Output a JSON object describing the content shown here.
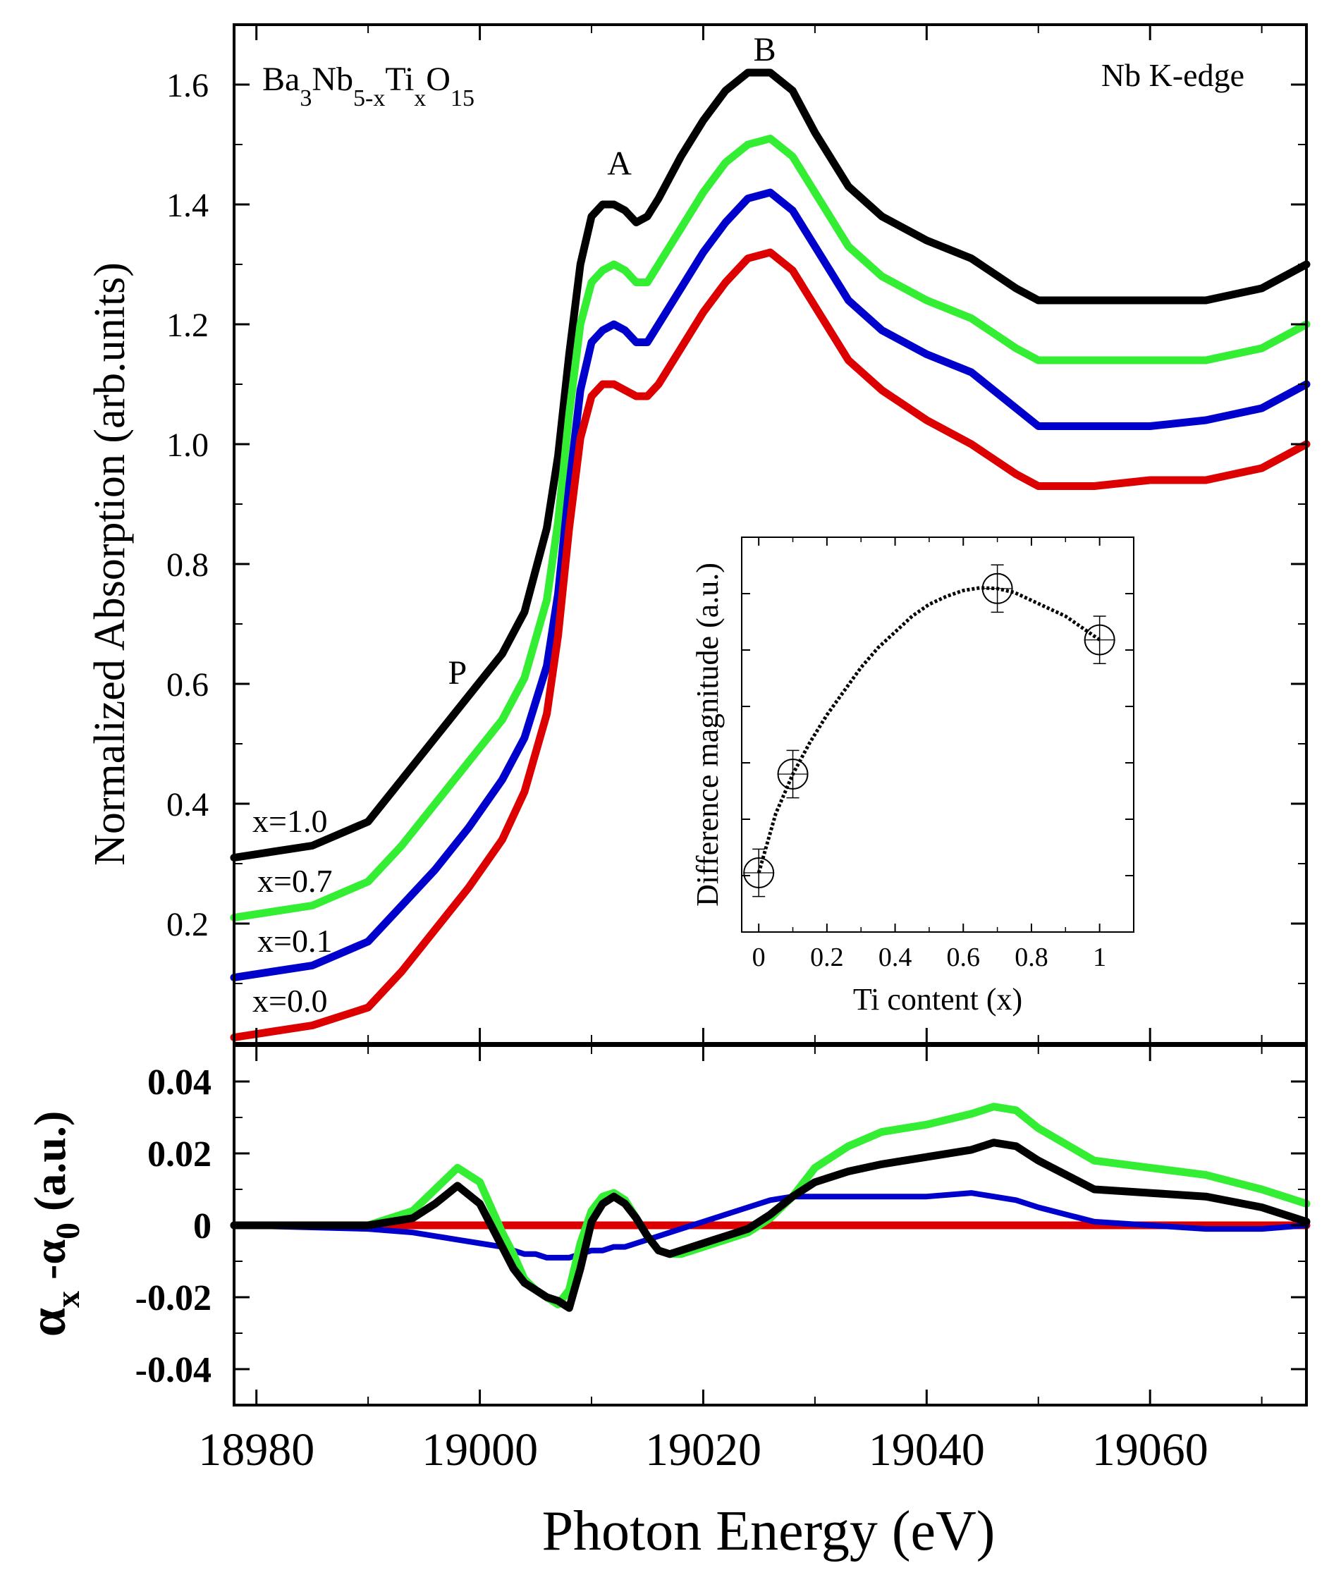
{
  "figure": {
    "xlabel": "Photon Energy (eV)",
    "formula": {
      "base": "Ba",
      "parts": [
        {
          "t": "Ba",
          "sub": "3"
        },
        {
          "t": "Nb",
          "sub": "5-x"
        },
        {
          "t": "Ti",
          "sub": "x"
        },
        {
          "t": "O",
          "sub": "15"
        }
      ]
    },
    "edge_label": "Nb K-edge",
    "peak_labels": {
      "P": "P",
      "A": "A",
      "B": "B"
    },
    "colors": {
      "x1.0": "#000000",
      "x0.7": "#33ee33",
      "x0.1": "#0000cc",
      "x0.0": "#dd0000",
      "legend_x1": "#555555"
    }
  },
  "chart_data": [
    {
      "type": "line",
      "title": "",
      "ylabel": "Normalized Absorption (arb.units)",
      "xlim": [
        18978,
        19074
      ],
      "ylim": [
        0.0,
        1.7
      ],
      "yticks": [
        0.2,
        0.4,
        0.6,
        0.8,
        1.0,
        1.2,
        1.4,
        1.6
      ],
      "ytick_labels": [
        "0.2",
        "0.4",
        "0.6",
        "0.8",
        "1.0",
        "1.2",
        "1.4",
        "1.6"
      ],
      "x": [
        18978,
        18985,
        18990,
        18993,
        18996,
        18999,
        19002,
        19004,
        19006,
        19007,
        19008,
        19009,
        19010,
        19011,
        19012,
        19013,
        19014,
        19015,
        19016,
        19018,
        19020,
        19022,
        19024,
        19026,
        19028,
        19030,
        19033,
        19036,
        19040,
        19044,
        19048,
        19050,
        19055,
        19060,
        19065,
        19070,
        19074
      ],
      "series": [
        {
          "name": "x=1.0",
          "label": "x=1.0",
          "color": "#000000",
          "values": [
            0.31,
            0.33,
            0.37,
            0.44,
            0.51,
            0.58,
            0.65,
            0.72,
            0.86,
            0.98,
            1.15,
            1.3,
            1.38,
            1.4,
            1.4,
            1.39,
            1.37,
            1.38,
            1.41,
            1.48,
            1.54,
            1.59,
            1.62,
            1.62,
            1.59,
            1.52,
            1.43,
            1.38,
            1.34,
            1.31,
            1.26,
            1.24,
            1.24,
            1.24,
            1.24,
            1.26,
            1.3
          ]
        },
        {
          "name": "x=0.7",
          "label": "x=0.7",
          "color": "#33ee33",
          "values": [
            0.21,
            0.23,
            0.27,
            0.33,
            0.4,
            0.47,
            0.54,
            0.61,
            0.74,
            0.87,
            1.05,
            1.2,
            1.27,
            1.29,
            1.3,
            1.29,
            1.27,
            1.27,
            1.3,
            1.36,
            1.42,
            1.47,
            1.5,
            1.51,
            1.48,
            1.42,
            1.33,
            1.28,
            1.24,
            1.21,
            1.16,
            1.14,
            1.14,
            1.14,
            1.14,
            1.16,
            1.2
          ]
        },
        {
          "name": "x=0.1",
          "label": "x=0.1",
          "color": "#0000cc",
          "values": [
            0.11,
            0.13,
            0.17,
            0.23,
            0.29,
            0.36,
            0.44,
            0.51,
            0.63,
            0.75,
            0.93,
            1.09,
            1.17,
            1.19,
            1.2,
            1.19,
            1.17,
            1.17,
            1.2,
            1.26,
            1.32,
            1.37,
            1.41,
            1.42,
            1.39,
            1.33,
            1.24,
            1.19,
            1.15,
            1.12,
            1.06,
            1.03,
            1.03,
            1.03,
            1.04,
            1.06,
            1.1
          ]
        },
        {
          "name": "x=0.0",
          "label": "x=0.0",
          "color": "#dd0000",
          "values": [
            0.01,
            0.03,
            0.06,
            0.12,
            0.19,
            0.26,
            0.34,
            0.42,
            0.55,
            0.68,
            0.86,
            1.01,
            1.08,
            1.1,
            1.1,
            1.09,
            1.08,
            1.08,
            1.1,
            1.16,
            1.22,
            1.27,
            1.31,
            1.32,
            1.29,
            1.23,
            1.14,
            1.09,
            1.04,
            1.0,
            0.95,
            0.93,
            0.93,
            0.94,
            0.94,
            0.96,
            1.0
          ]
        }
      ],
      "annotations": [
        {
          "text": "P",
          "x": 18998,
          "y": 0.6
        },
        {
          "text": "A",
          "x": 19012.5,
          "y": 1.45
        },
        {
          "text": "B",
          "x": 19025.5,
          "y": 1.64
        }
      ]
    },
    {
      "type": "line",
      "title": "",
      "ylabel_main": "α",
      "ylabel_sub1": "x",
      "ylabel_mid": " -α",
      "ylabel_sub2": "0",
      "ylabel_tail": " (a.u.)",
      "xlabel": "Photon Energy (eV)",
      "xlim": [
        18978,
        19074
      ],
      "ylim": [
        -0.05,
        0.05
      ],
      "xticks": [
        18980,
        19000,
        19020,
        19040,
        19060
      ],
      "xtick_labels": [
        "18980",
        "19000",
        "19020",
        "19040",
        "19060"
      ],
      "yticks": [
        -0.04,
        -0.02,
        0,
        0.02,
        0.04
      ],
      "ytick_labels": [
        "-0.04",
        "-0.02",
        "0",
        "0.02",
        "0.04"
      ],
      "x": [
        18978,
        18990,
        18994,
        18996,
        18998,
        19000,
        19002,
        19003,
        19004,
        19005,
        19006,
        19007,
        19008,
        19009,
        19010,
        19011,
        19012,
        19013,
        19014,
        19015,
        19016,
        19017,
        19018,
        19020,
        19022,
        19024,
        19026,
        19028,
        19030,
        19033,
        19036,
        19040,
        19044,
        19046,
        19048,
        19050,
        19055,
        19060,
        19065,
        19070,
        19074
      ],
      "series": [
        {
          "name": "x=0.0",
          "color": "#dd0000",
          "values": [
            0,
            0,
            0,
            0,
            0,
            0,
            0,
            0,
            0,
            0,
            0,
            0,
            0,
            0,
            0,
            0,
            0,
            0,
            0,
            0,
            0,
            0,
            0,
            0,
            0,
            0,
            0,
            0,
            0,
            0,
            0,
            0,
            0,
            0,
            0,
            0,
            0,
            0,
            0,
            0,
            0
          ]
        },
        {
          "name": "x=0.1",
          "color": "#0000cc",
          "values": [
            0,
            -0.001,
            -0.002,
            -0.003,
            -0.004,
            -0.005,
            -0.006,
            -0.007,
            -0.008,
            -0.008,
            -0.009,
            -0.009,
            -0.009,
            -0.008,
            -0.007,
            -0.007,
            -0.006,
            -0.006,
            -0.005,
            -0.004,
            -0.003,
            -0.002,
            -0.001,
            0.001,
            0.003,
            0.005,
            0.007,
            0.008,
            0.008,
            0.008,
            0.008,
            0.008,
            0.009,
            0.008,
            0.007,
            0.005,
            0.001,
            0.0,
            -0.001,
            -0.001,
            0.0
          ]
        },
        {
          "name": "x=0.7",
          "color": "#33ee33",
          "values": [
            0,
            0,
            0.004,
            0.01,
            0.016,
            0.012,
            -0.002,
            -0.008,
            -0.015,
            -0.018,
            -0.02,
            -0.022,
            -0.018,
            -0.005,
            0.004,
            0.008,
            0.009,
            0.007,
            0.002,
            -0.003,
            -0.007,
            -0.008,
            -0.008,
            -0.006,
            -0.004,
            -0.002,
            0.002,
            0.008,
            0.016,
            0.022,
            0.026,
            0.028,
            0.031,
            0.033,
            0.032,
            0.027,
            0.018,
            0.016,
            0.014,
            0.01,
            0.006
          ]
        },
        {
          "name": "x=1.0",
          "color": "#000000",
          "values": [
            0,
            0,
            0.002,
            0.006,
            0.011,
            0.006,
            -0.006,
            -0.012,
            -0.016,
            -0.018,
            -0.02,
            -0.021,
            -0.023,
            -0.012,
            0.001,
            0.006,
            0.008,
            0.006,
            0.002,
            -0.003,
            -0.007,
            -0.008,
            -0.007,
            -0.005,
            -0.003,
            -0.001,
            0.003,
            0.008,
            0.012,
            0.015,
            0.017,
            0.019,
            0.021,
            0.023,
            0.022,
            0.018,
            0.01,
            0.009,
            0.008,
            0.005,
            0.001
          ]
        }
      ]
    },
    {
      "type": "scatter",
      "title": "",
      "xlabel": "Ti content (x)",
      "ylabel": "Difference magnitude (a.u.)",
      "xlim": [
        -0.05,
        1.1
      ],
      "ylim": [
        0,
        1
      ],
      "xticks": [
        0,
        0.2,
        0.4,
        0.6,
        0.8,
        1.0
      ],
      "xtick_labels": [
        "0",
        "0.2",
        "0.4",
        "0.6",
        "0.8",
        "1"
      ],
      "points": [
        {
          "x": 0.0,
          "y": 0.15,
          "err": 0.06
        },
        {
          "x": 0.1,
          "y": 0.4,
          "err": 0.06
        },
        {
          "x": 0.7,
          "y": 0.87,
          "err": 0.06
        },
        {
          "x": 1.0,
          "y": 0.74,
          "err": 0.06
        }
      ],
      "fit_x": [
        0.0,
        0.05,
        0.1,
        0.15,
        0.2,
        0.25,
        0.3,
        0.35,
        0.4,
        0.45,
        0.5,
        0.55,
        0.6,
        0.65,
        0.7,
        0.75,
        0.8,
        0.85,
        0.9,
        0.95,
        1.0
      ],
      "fit_y": [
        0.15,
        0.3,
        0.4,
        0.48,
        0.55,
        0.61,
        0.67,
        0.72,
        0.76,
        0.8,
        0.83,
        0.85,
        0.865,
        0.872,
        0.87,
        0.86,
        0.84,
        0.82,
        0.8,
        0.77,
        0.74
      ]
    }
  ]
}
